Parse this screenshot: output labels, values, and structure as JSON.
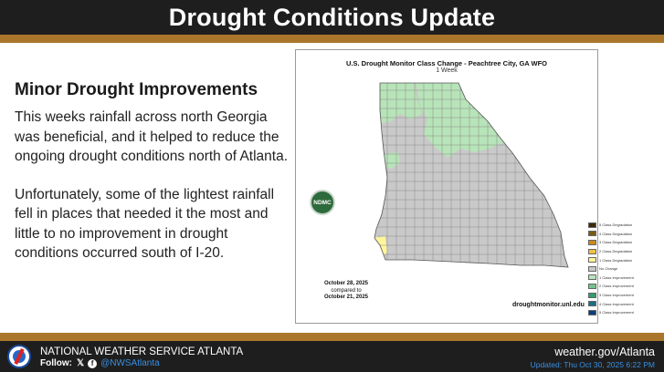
{
  "header": {
    "title": "Drought Conditions Update"
  },
  "article": {
    "heading": "Minor Drought Improvements",
    "paragraph1": "This weeks rainfall across north Georgia was beneficial, and it helped to reduce the ongoing drought conditions north of Atlanta.",
    "paragraph2": "Unfortunately, some of the lightest rainfall fell in places that needed it the most and little to no improvement in drought conditions occurred south of I-20."
  },
  "map": {
    "title": "U.S. Drought Monitor Class Change - Peachtree City, GA WFO",
    "subtitle": "1 Week",
    "date_current": "October 28, 2025",
    "compared_to": "compared to",
    "date_previous": "October 21, 2025",
    "source": "droughtmonitor.unl.edu",
    "logo_text": "NDMC",
    "colors": {
      "no_change": "#c9c9c9",
      "one_class_improvement": "#b7e4b8",
      "one_class_degradation": "#fff59a",
      "county_line": "#8a8a8a"
    },
    "legend": [
      {
        "label": "5 Class Degradation",
        "color": "#3d2b06"
      },
      {
        "label": "4 Class Degradation",
        "color": "#7a5a12"
      },
      {
        "label": "3 Class Degradation",
        "color": "#c98a1e"
      },
      {
        "label": "2 Class Degradation",
        "color": "#f5c042"
      },
      {
        "label": "1 Class Degradation",
        "color": "#fff59a"
      },
      {
        "label": "No Change",
        "color": "#c9c9c9"
      },
      {
        "label": "1 Class Improvement",
        "color": "#b7e4b8"
      },
      {
        "label": "2 Class Improvement",
        "color": "#74c48a"
      },
      {
        "label": "3 Class Improvement",
        "color": "#2f9e6a"
      },
      {
        "label": "4 Class Improvement",
        "color": "#1b6e87"
      },
      {
        "label": "5 Class Improvement",
        "color": "#0d3d7a"
      }
    ]
  },
  "footer": {
    "org": "NATIONAL WEATHER SERVICE ATLANTA",
    "follow_label": "Follow:",
    "x_icon": "x-icon",
    "facebook_icon": "facebook-icon",
    "handle": "@NWSAtlanta",
    "site": "weather.gov/Atlanta",
    "updated": "Updated: Thu Oct 30, 2025 6:22 PM"
  }
}
